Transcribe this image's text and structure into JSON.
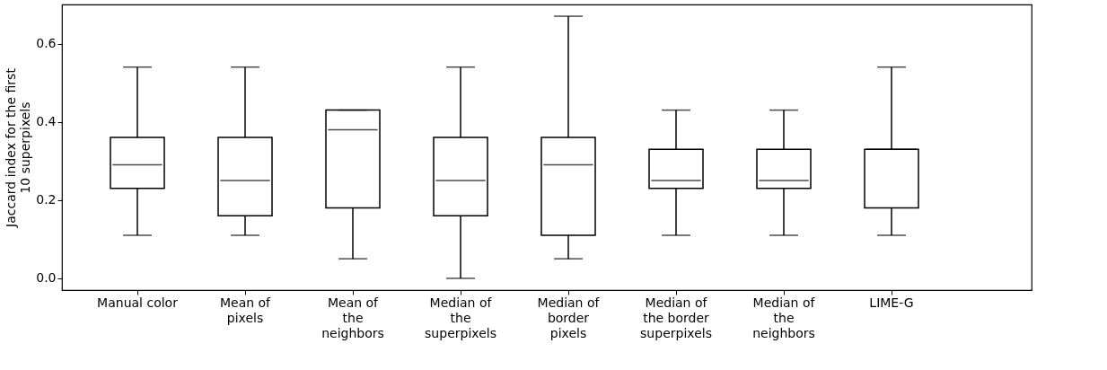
{
  "chart_data": {
    "type": "box",
    "ylabel": "Jaccard index for the first\n10 superpixels",
    "categories": [
      "Manual color",
      "Mean of\npixels",
      "Mean of\nthe\nneighbors",
      "Median of\nthe\nsuperpixels",
      "Median of\nborder\npixels",
      "Median of\nthe border\nsuperpixels",
      "Median of\nthe\nneighbors",
      "LIME-G"
    ],
    "boxes": [
      {
        "low": 0.11,
        "q1": 0.23,
        "median": 0.29,
        "q3": 0.36,
        "high": 0.54
      },
      {
        "low": 0.11,
        "q1": 0.16,
        "median": 0.25,
        "q3": 0.36,
        "high": 0.54
      },
      {
        "low": 0.05,
        "q1": 0.18,
        "median": 0.38,
        "q3": 0.43,
        "high": 0.43
      },
      {
        "low": 0.0,
        "q1": 0.16,
        "median": 0.25,
        "q3": 0.36,
        "high": 0.54
      },
      {
        "low": 0.05,
        "q1": 0.11,
        "median": 0.29,
        "q3": 0.36,
        "high": 0.67
      },
      {
        "low": 0.11,
        "q1": 0.23,
        "median": 0.25,
        "q3": 0.33,
        "high": 0.43
      },
      {
        "low": 0.11,
        "q1": 0.23,
        "median": 0.25,
        "q3": 0.33,
        "high": 0.43
      },
      {
        "low": 0.11,
        "q1": 0.18,
        "median": 0.33,
        "q3": 0.33,
        "high": 0.54
      }
    ],
    "ylim": [
      -0.03,
      0.7
    ],
    "yticks": [
      {
        "value": 0,
        "label": "0.0"
      },
      0.2,
      0.4,
      0.6
    ],
    "grid": false
  }
}
